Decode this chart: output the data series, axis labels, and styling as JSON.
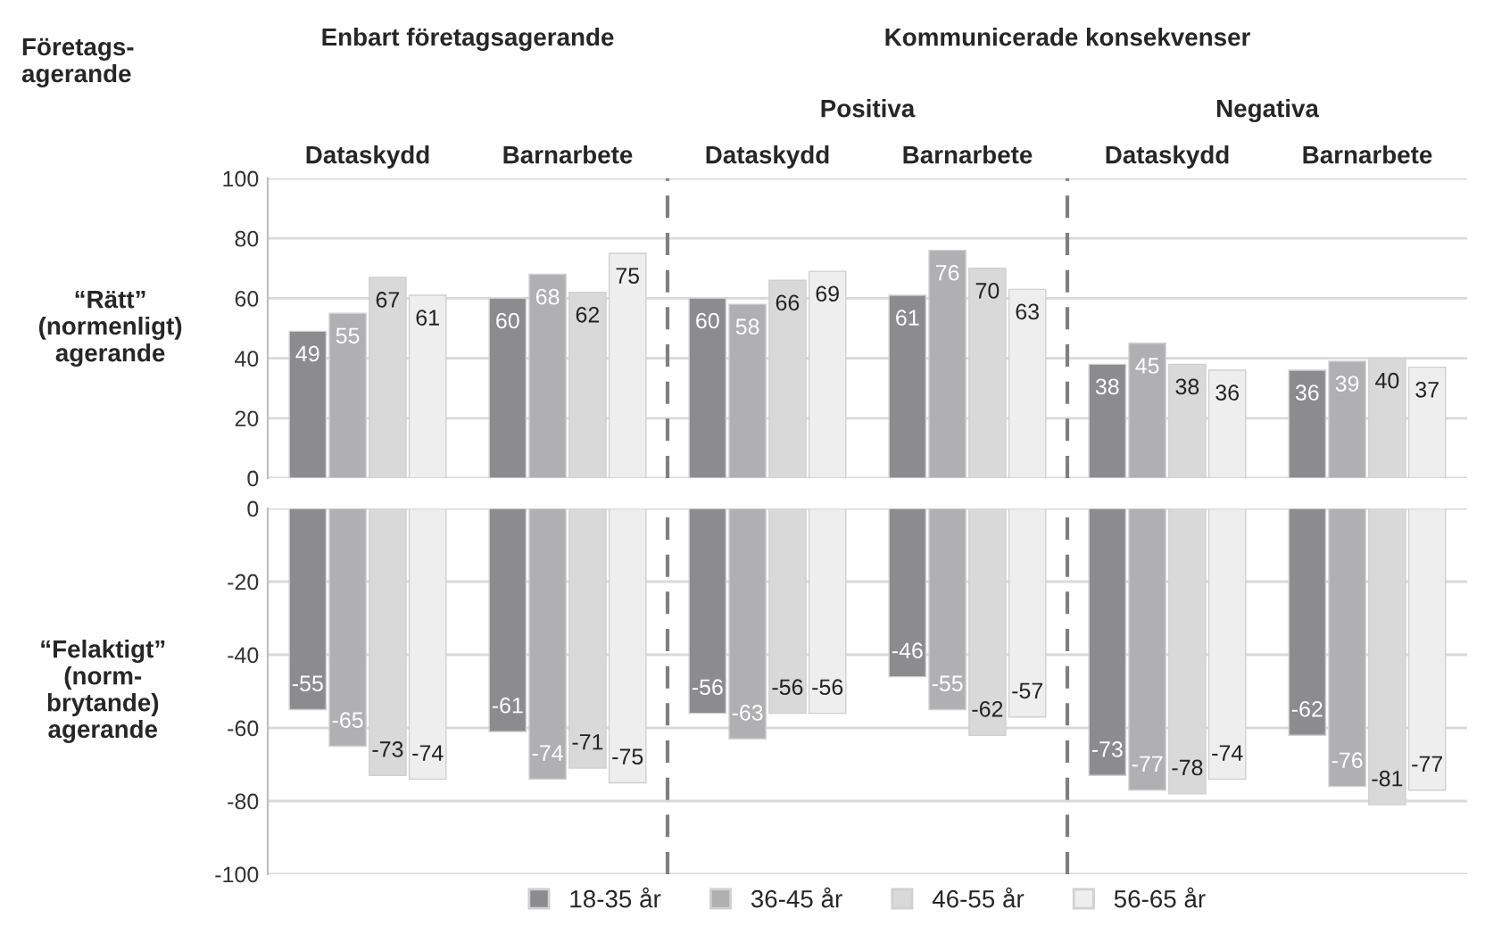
{
  "chart_data": [
    {
      "type": "bar",
      "ylabel": "“Rätt”\n(normenligt)\nagerande",
      "annotations": [
        "Företags-\nagerande",
        "Enbart företagsagerande",
        "Kommunicerade konsekvenser",
        "Positiva",
        "Negativa"
      ],
      "categories": [
        "Dataskydd",
        "Barnarbete",
        "Dataskydd",
        "Barnarbete",
        "Dataskydd",
        "Barnarbete"
      ],
      "series": [
        {
          "name": "18-35 år",
          "color": "#8c8c8e",
          "values": [
            49,
            60,
            60,
            61,
            38,
            36
          ]
        },
        {
          "name": "36-45 år",
          "color": "#b0b0b2",
          "values": [
            55,
            68,
            58,
            76,
            45,
            39
          ]
        },
        {
          "name": "46-55 år",
          "color": "#d9d9da",
          "values": [
            67,
            62,
            66,
            70,
            38,
            40
          ]
        },
        {
          "name": "56-65 år",
          "color": "#eeeeee",
          "values": [
            61,
            75,
            69,
            63,
            36,
            37
          ]
        }
      ],
      "ylim": [
        0,
        100
      ],
      "yticks": [
        0,
        20,
        40,
        60,
        80,
        100
      ],
      "grid": "y",
      "data_labels": true,
      "legend": "bottom"
    },
    {
      "type": "bar",
      "ylabel": "“Felaktigt”\n(norm-\nbrytande)\nagerande",
      "categories": [
        null,
        null,
        null,
        null,
        null,
        null
      ],
      "series": [
        {
          "color": "#8c8c8e",
          "values": [
            -55,
            -61,
            -56,
            -46,
            -73,
            -62
          ]
        },
        {
          "color": "#b0b0b2",
          "values": [
            -65,
            -74,
            -63,
            -55,
            -77,
            -76
          ]
        },
        {
          "color": "#d9d9da",
          "values": [
            -73,
            -71,
            -56,
            -62,
            -78,
            -81
          ]
        },
        {
          "color": "#eeeeee",
          "values": [
            -74,
            -75,
            -56,
            -57,
            -74,
            -77
          ]
        }
      ],
      "ylim": [
        -100,
        0
      ],
      "yticks": [
        -100,
        -80,
        -60,
        -40,
        -20,
        0
      ],
      "grid": "y",
      "data_labels": true,
      "tick_labels": "y"
    }
  ]
}
